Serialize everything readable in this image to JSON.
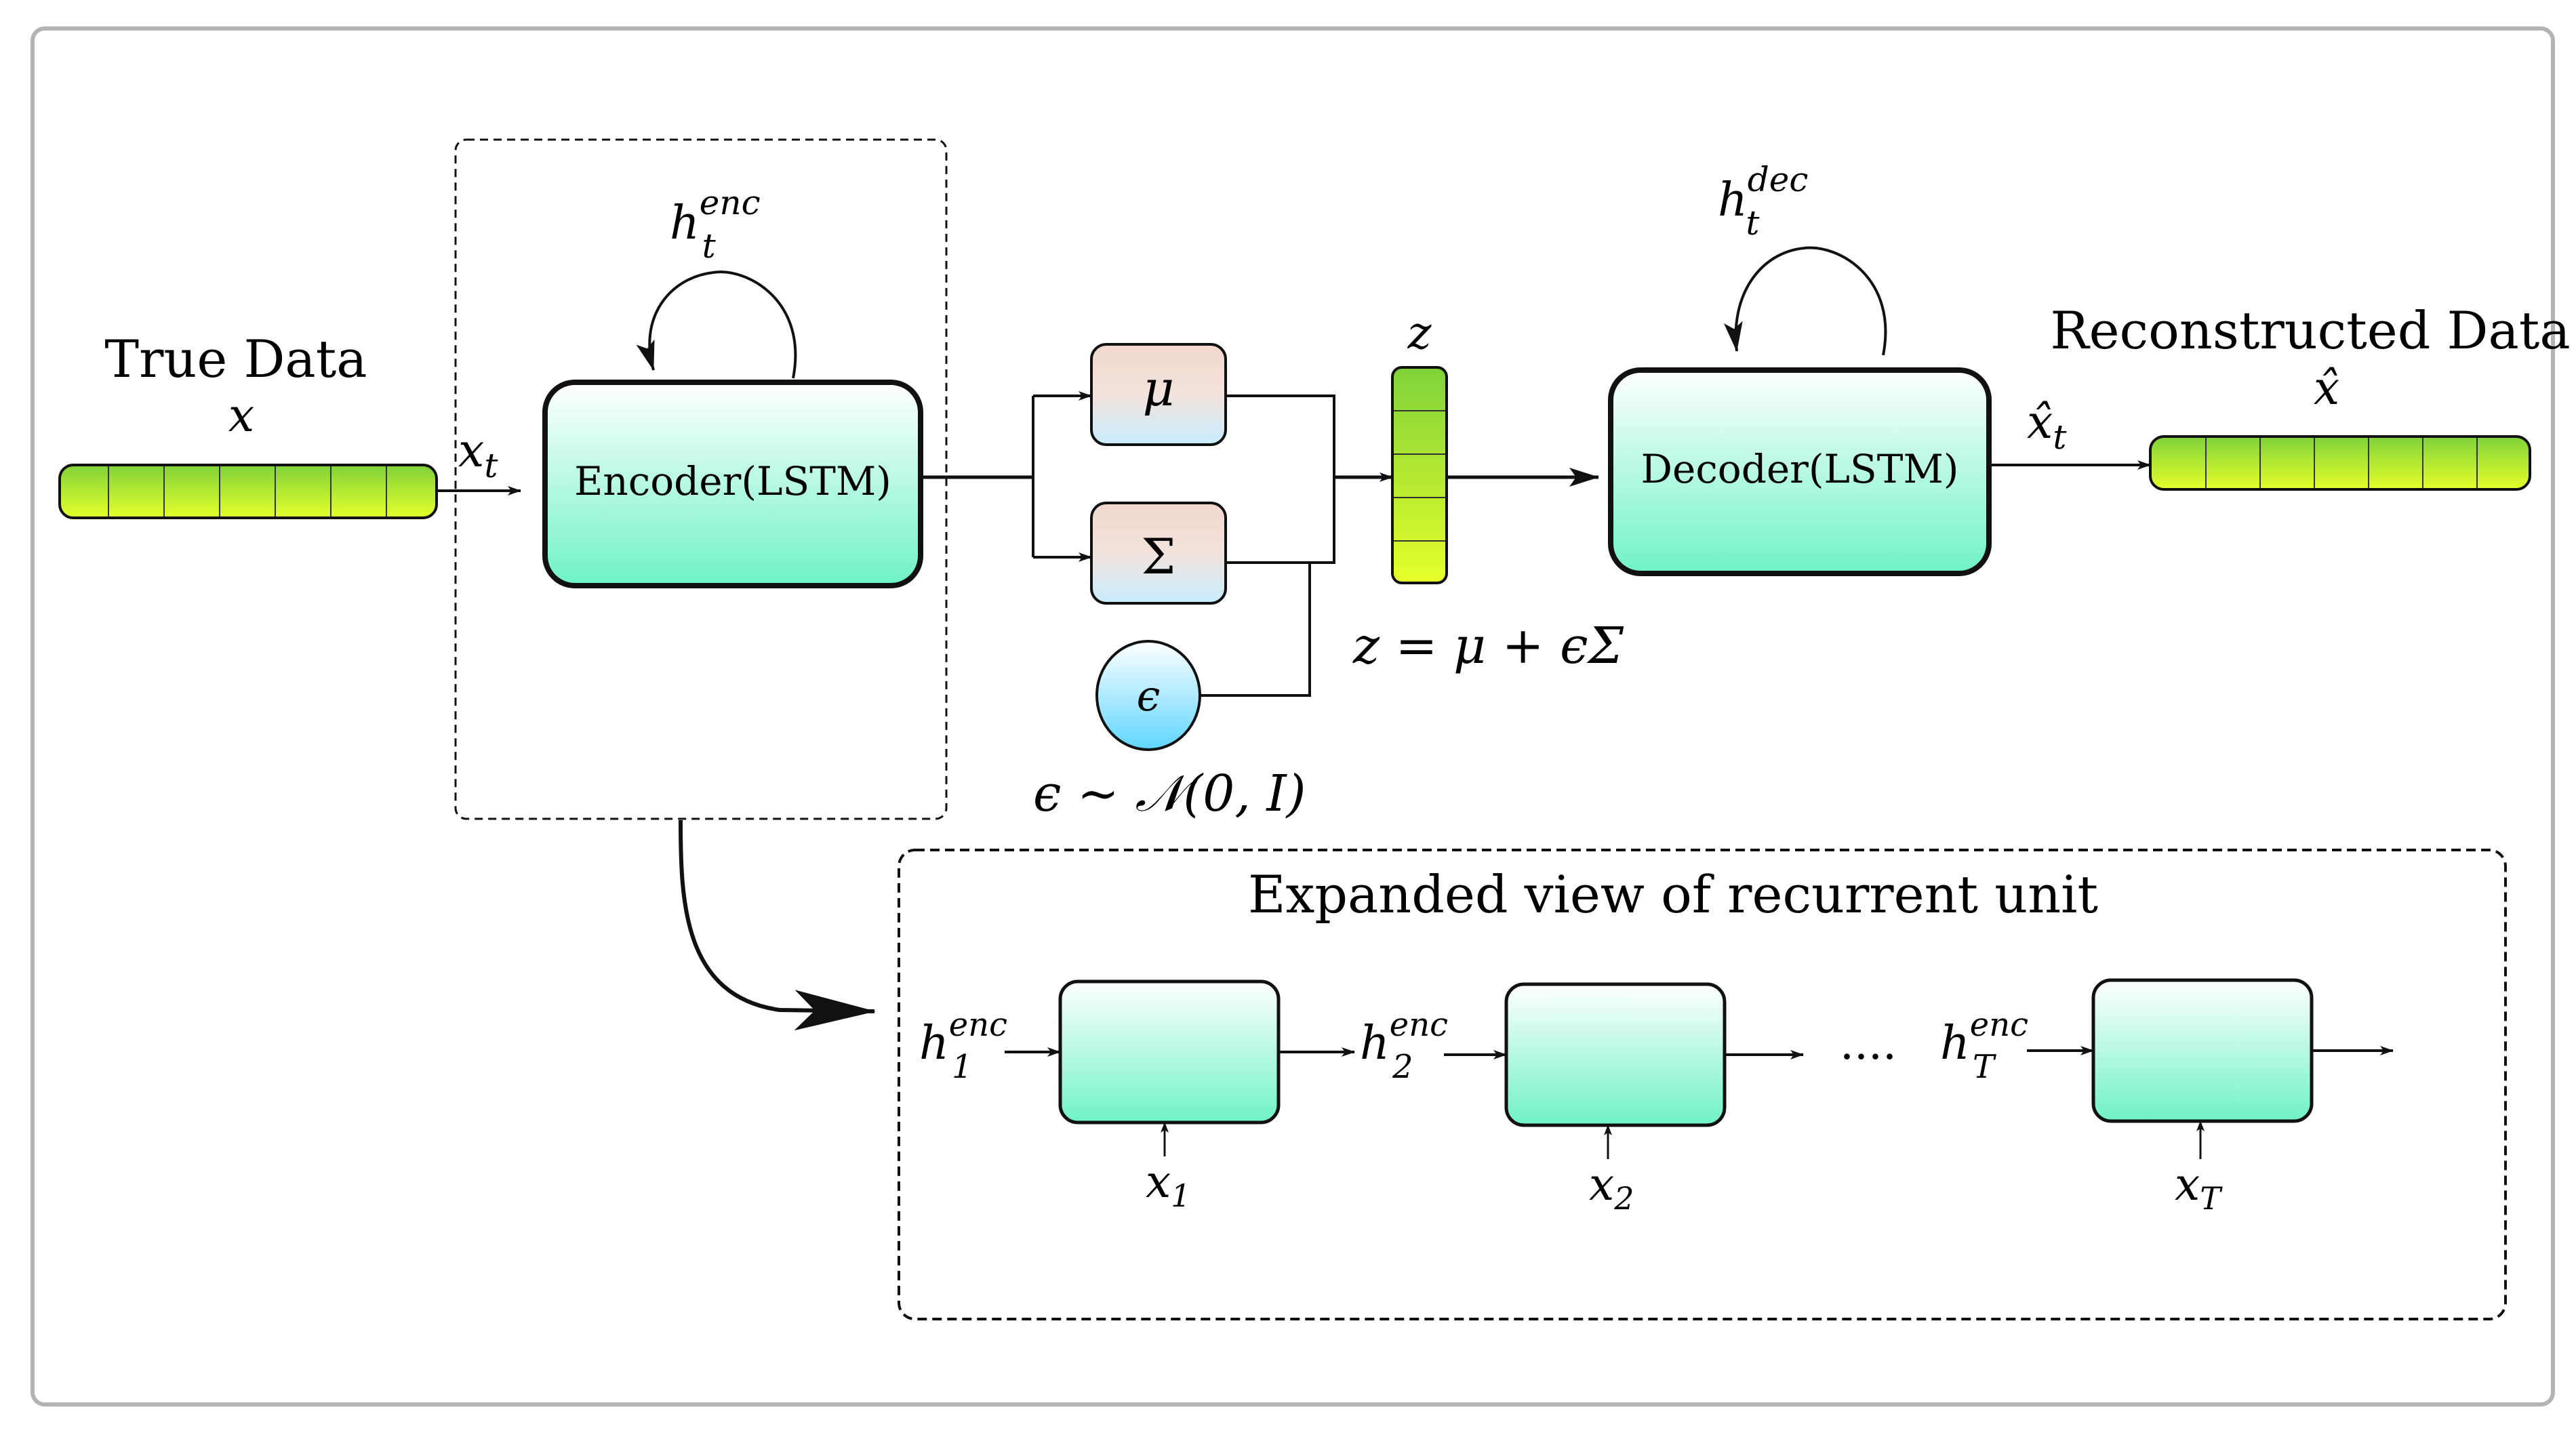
{
  "labels": {
    "true_data_title": "True Data",
    "true_data_var": "x",
    "x_t_base": "x",
    "x_t_sub": "t",
    "h_enc_base": "h",
    "h_enc_sub": "t",
    "h_enc_sup": "enc",
    "encoder": "Encoder(LSTM)",
    "mu": "μ",
    "sigma": "Σ",
    "epsilon": "ϵ",
    "z_label": "z",
    "z_formula": "z = μ + ϵΣ",
    "eps_dist": "ϵ ∼ 𝒩(0, I)",
    "decoder": "Decoder(LSTM)",
    "h_dec_base": "h",
    "h_dec_sub": "t",
    "h_dec_sup": "dec",
    "recon_title": "Reconstructed Data",
    "recon_var": "x̂",
    "xhat_t_base": "x̂",
    "xhat_t_sub": "t"
  },
  "expanded": {
    "title": "Expanded view of recurrent unit",
    "ellipsis": "....",
    "units": [
      {
        "h_base": "h",
        "h_sub": "1",
        "h_sup": "enc",
        "x_base": "x",
        "x_sub": "1"
      },
      {
        "h_base": "h",
        "h_sub": "2",
        "h_sup": "enc",
        "x_base": "x",
        "x_sub": "2"
      },
      {
        "h_base": "h",
        "h_sub": "T",
        "h_sup": "enc",
        "x_base": "x",
        "x_sub": "T"
      }
    ]
  },
  "colors": {
    "vector_top": "#7fd23a",
    "vector_bottom": "#e6ff2a",
    "lstm_top": "#ffffff",
    "lstm_bottom": "#6ff2c8",
    "param_top": "#f0d7cc",
    "param_bottom": "#c9ecff",
    "eps_top": "#ffffff",
    "eps_bottom": "#5fd6ff",
    "frame": "#b3b3b3",
    "stroke": "#111111"
  }
}
